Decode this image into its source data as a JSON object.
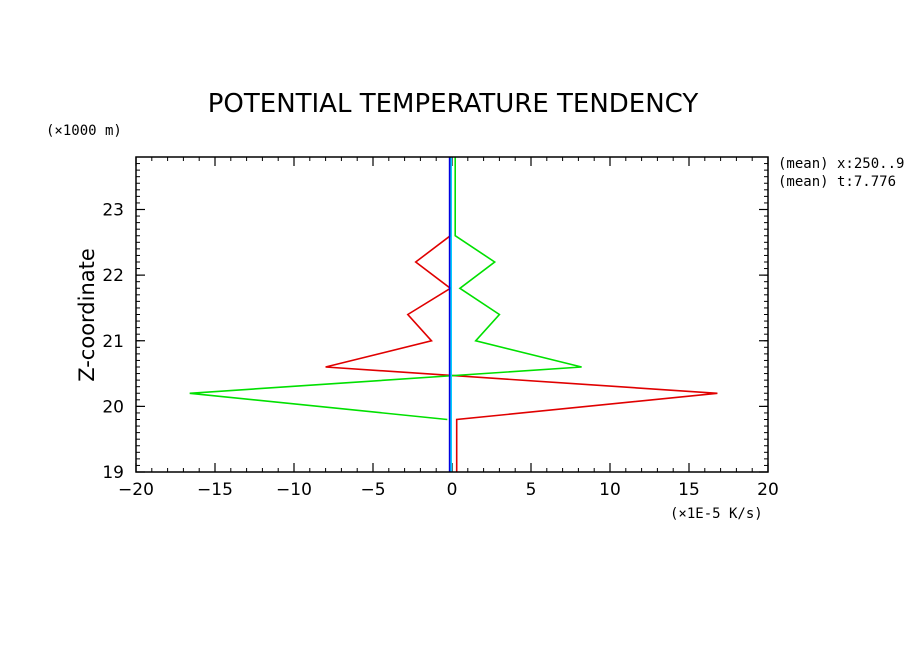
{
  "chart_data": {
    "type": "line",
    "title": "POTENTIAL TEMPERATURE TENDENCY",
    "ylabel": "Z-coordinate",
    "yunit": "(×1000 m)",
    "xunit": "(×1E-5 K/s)",
    "xlim": [
      -20,
      20
    ],
    "ylim": [
      19,
      23.8
    ],
    "xticks": [
      -20,
      -15,
      -10,
      -5,
      0,
      5,
      10,
      15,
      20
    ],
    "yticks": [
      19,
      20,
      21,
      22,
      23
    ],
    "xtick_labels": [
      "−20",
      "−15",
      "−10",
      "−5",
      "0",
      "5",
      "10",
      "15",
      "20"
    ],
    "ytick_labels": [
      "19",
      "20",
      "21",
      "22",
      "23"
    ],
    "annotations": [
      "(mean) x:250..9",
      "(mean) t:7.776"
    ],
    "series": [
      {
        "color": "#e00000",
        "points": [
          [
            0.3,
            19.0
          ],
          [
            0.3,
            19.8
          ],
          [
            16.8,
            20.2
          ],
          [
            -8.0,
            20.6
          ],
          [
            -1.3,
            21.0
          ],
          [
            -2.8,
            21.4
          ],
          [
            -0.1,
            21.8
          ],
          [
            -2.3,
            22.2
          ],
          [
            -0.1,
            22.6
          ],
          [
            -0.1,
            23.8
          ]
        ]
      },
      {
        "color": "#00e000",
        "points": [
          [
            -0.3,
            19.8
          ],
          [
            -16.6,
            20.2
          ],
          [
            8.2,
            20.6
          ],
          [
            1.5,
            21.0
          ],
          [
            3.0,
            21.4
          ],
          [
            0.5,
            21.8
          ],
          [
            2.7,
            22.2
          ],
          [
            0.2,
            22.6
          ],
          [
            0.2,
            23.8
          ]
        ]
      },
      {
        "color": "#00d0ff",
        "points": [
          [
            -0.05,
            19.0
          ],
          [
            -0.05,
            23.8
          ]
        ]
      },
      {
        "color": "#0000e0",
        "points": [
          [
            -0.15,
            19.0
          ],
          [
            -0.15,
            23.8
          ]
        ]
      }
    ]
  }
}
